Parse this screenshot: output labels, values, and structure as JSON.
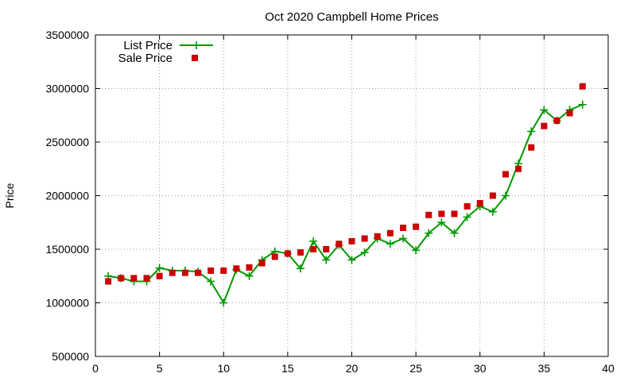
{
  "chart_data": {
    "type": "line",
    "title": "Oct 2020 Campbell Home Prices",
    "xlabel": "",
    "ylabel": "Price",
    "xlim": [
      0,
      40
    ],
    "ylim": [
      500000,
      3500000
    ],
    "xticks": [
      "0",
      "5",
      "10",
      "15",
      "20",
      "25",
      "30",
      "35",
      "40"
    ],
    "yticks": [
      "500000",
      "1000000",
      "1500000",
      "2000000",
      "2500000",
      "3000000",
      "3500000"
    ],
    "grid": true,
    "legend_position": "top-left",
    "x": [
      1,
      2,
      3,
      4,
      5,
      6,
      7,
      8,
      9,
      10,
      11,
      12,
      13,
      14,
      15,
      16,
      17,
      18,
      19,
      20,
      21,
      22,
      23,
      24,
      25,
      26,
      27,
      28,
      29,
      30,
      31,
      32,
      33,
      34,
      35,
      36,
      37,
      38
    ],
    "series": [
      {
        "name": "List Price",
        "style": "line-plus",
        "color": "#009900",
        "values": [
          1250000,
          1230000,
          1200000,
          1200000,
          1325000,
          1300000,
          1300000,
          1290000,
          1200000,
          1000000,
          1310000,
          1250000,
          1400000,
          1480000,
          1460000,
          1320000,
          1575000,
          1400000,
          1540000,
          1400000,
          1470000,
          1600000,
          1550000,
          1600000,
          1490000,
          1650000,
          1750000,
          1650000,
          1800000,
          1900000,
          1850000,
          2000000,
          2300000,
          2600000,
          2800000,
          2700000,
          2800000,
          2850000
        ]
      },
      {
        "name": "Sale Price",
        "style": "square",
        "color": "#cc0000",
        "values": [
          1200000,
          1230000,
          1230000,
          1230000,
          1250000,
          1280000,
          1280000,
          1280000,
          1300000,
          1300000,
          1320000,
          1330000,
          1370000,
          1430000,
          1460000,
          1470000,
          1500000,
          1500000,
          1550000,
          1575000,
          1600000,
          1620000,
          1650000,
          1700000,
          1710000,
          1820000,
          1830000,
          1830000,
          1900000,
          1930000,
          2000000,
          2200000,
          2250000,
          2450000,
          2650000,
          2700000,
          2770000,
          3020000
        ]
      }
    ]
  }
}
